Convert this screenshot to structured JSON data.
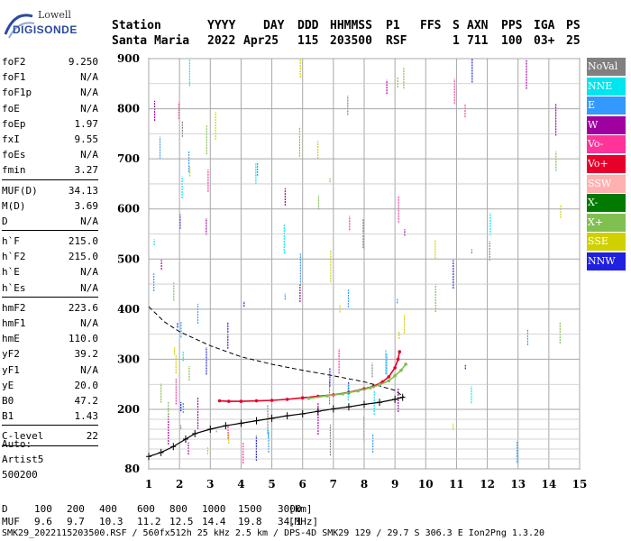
{
  "logo": {
    "line1": "Lowell",
    "line2": "DIGISONDE"
  },
  "header": {
    "labels": [
      "Station",
      "YYYY",
      "DAY",
      "DDD",
      "HHMMSS",
      "P1",
      "FFS",
      "S",
      "AXN",
      "PPS",
      "IGA",
      "PS"
    ],
    "values": [
      "Santa Maria",
      "2022",
      "Apr25",
      "115",
      "203500",
      "RSF",
      "",
      "1",
      "711",
      "100",
      "03+",
      "25"
    ]
  },
  "params": [
    {
      "label": "foF2",
      "value": "9.250"
    },
    {
      "label": "foF1",
      "value": "N/A"
    },
    {
      "label": "foF1p",
      "value": "N/A"
    },
    {
      "label": "foE",
      "value": "N/A"
    },
    {
      "label": "foEp",
      "value": "1.97"
    },
    {
      "label": "fxI",
      "value": "9.55"
    },
    {
      "label": "foEs",
      "value": "N/A"
    },
    {
      "label": "fmin",
      "value": "3.27"
    },
    {
      "sep": true
    },
    {
      "label": "MUF(D)",
      "value": "34.13"
    },
    {
      "label": "M(D)",
      "value": "3.69"
    },
    {
      "label": "D",
      "value": "N/A"
    },
    {
      "sep": true
    },
    {
      "label": "h`F",
      "value": "215.0"
    },
    {
      "label": "h`F2",
      "value": "215.0"
    },
    {
      "label": "h`E",
      "value": "N/A"
    },
    {
      "label": "h`Es",
      "value": "N/A"
    },
    {
      "sep": true
    },
    {
      "label": "hmF2",
      "value": "223.6"
    },
    {
      "label": "hmF1",
      "value": "N/A"
    },
    {
      "label": "hmE",
      "value": "110.0"
    },
    {
      "label": "yF2",
      "value": "39.2"
    },
    {
      "label": "yF1",
      "value": "N/A"
    },
    {
      "label": "yE",
      "value": "20.0"
    },
    {
      "label": "B0",
      "value": "47.2"
    },
    {
      "label": "B1",
      "value": "1.43"
    },
    {
      "sep": true
    },
    {
      "label": "C-level",
      "value": "22"
    },
    {
      "sep": true
    }
  ],
  "auto": {
    "line1": "Auto:",
    "line2": "Artist5",
    "line3": "500200"
  },
  "legend": [
    {
      "label": "NoVal",
      "color": "#808080"
    },
    {
      "label": "NNE",
      "color": "#00e5ee"
    },
    {
      "label": "E",
      "color": "#3399ff"
    },
    {
      "label": "W",
      "color": "#a000a0"
    },
    {
      "label": "Vo-",
      "color": "#ff3399"
    },
    {
      "label": "Vo+",
      "color": "#e8002a"
    },
    {
      "label": "SSW",
      "color": "#ffb0b0"
    },
    {
      "label": "X-",
      "color": "#007a00"
    },
    {
      "label": "X+",
      "color": "#80c050"
    },
    {
      "label": "SSE",
      "color": "#d0d000"
    },
    {
      "label": "NNW",
      "color": "#2020e0"
    }
  ],
  "chart_data": {
    "type": "scatter",
    "xlim": [
      1,
      15
    ],
    "ylim": [
      80,
      900
    ],
    "x_ticks": [
      1,
      2,
      3,
      4,
      5,
      6,
      7,
      8,
      9,
      10,
      11,
      12,
      13,
      14,
      15
    ],
    "y_ticks": [
      80,
      200,
      300,
      400,
      500,
      600,
      700,
      800,
      900
    ],
    "grid": true,
    "series": [
      {
        "name": "Vo+",
        "color": "#e8002a",
        "points": [
          [
            3.3,
            217
          ],
          [
            3.6,
            216
          ],
          [
            4.0,
            216
          ],
          [
            4.5,
            217
          ],
          [
            5.0,
            218
          ],
          [
            5.5,
            220
          ],
          [
            6.0,
            223
          ],
          [
            6.5,
            226
          ],
          [
            7.0,
            229
          ],
          [
            7.5,
            234
          ],
          [
            8.0,
            241
          ],
          [
            8.3,
            246
          ],
          [
            8.6,
            255
          ],
          [
            8.8,
            265
          ],
          [
            9.0,
            283
          ],
          [
            9.1,
            300
          ],
          [
            9.15,
            315
          ]
        ]
      },
      {
        "name": "X+",
        "color": "#80c050",
        "points": [
          [
            6.2,
            222
          ],
          [
            6.8,
            227
          ],
          [
            7.3,
            231
          ],
          [
            7.8,
            237
          ],
          [
            8.2,
            243
          ],
          [
            8.5,
            249
          ],
          [
            8.8,
            257
          ],
          [
            9.0,
            267
          ],
          [
            9.2,
            278
          ],
          [
            9.35,
            290
          ]
        ]
      }
    ],
    "profile": [
      [
        1.0,
        105
      ],
      [
        1.4,
        113
      ],
      [
        1.8,
        125
      ],
      [
        2.2,
        140
      ],
      [
        2.5,
        151
      ],
      [
        3.0,
        160
      ],
      [
        3.5,
        167
      ],
      [
        4.0,
        172
      ],
      [
        4.5,
        177
      ],
      [
        5.0,
        182
      ],
      [
        5.5,
        187
      ],
      [
        6.0,
        191
      ],
      [
        6.5,
        196
      ],
      [
        7.0,
        201
      ],
      [
        7.5,
        205
      ],
      [
        8.0,
        210
      ],
      [
        8.5,
        214
      ],
      [
        9.0,
        220
      ],
      [
        9.25,
        224
      ]
    ],
    "dashed_curve": [
      [
        1.0,
        405
      ],
      [
        1.5,
        375
      ],
      [
        2.0,
        355
      ],
      [
        3.0,
        327
      ],
      [
        4.0,
        305
      ],
      [
        5.0,
        290
      ],
      [
        6.0,
        278
      ],
      [
        7.0,
        267
      ],
      [
        8.0,
        255
      ],
      [
        9.0,
        238
      ],
      [
        9.3,
        224
      ]
    ]
  },
  "bottom": {
    "d_label": "D",
    "d_values": [
      "100",
      "200",
      "400",
      "600",
      "800",
      "1000",
      "1500",
      "3000"
    ],
    "d_unit": "[km]",
    "muf_label": "MUF",
    "muf_values": [
      "9.6",
      "9.7",
      "10.3",
      "11.2",
      "12.5",
      "14.4",
      "19.8",
      "34.1"
    ],
    "muf_unit": "[MHz]"
  },
  "footer": "SMK29_2022115203500.RSF / 560fx512h 25 kHz 2.5 km / DPS-4D SMK29 129 / 29.7 S 306.3 E Ion2Png 1.3.20"
}
